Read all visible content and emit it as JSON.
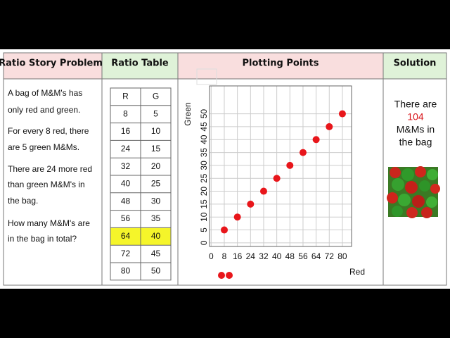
{
  "headers": [
    "Ratio Story Problem",
    "Ratio Table",
    "Plotting Points",
    "Solution"
  ],
  "story": [
    [
      "A bag of M&M's has",
      "only red and green."
    ],
    [
      "For every 8 red, there",
      "are 5 green M&Ms."
    ],
    [
      "There are 24 more red",
      "than green M&M's in",
      "the bag."
    ],
    [
      "How many M&M's are",
      "in the bag in total?"
    ]
  ],
  "table": {
    "columns": [
      "R",
      "G"
    ],
    "rows": [
      [
        8,
        5
      ],
      [
        16,
        10
      ],
      [
        24,
        15
      ],
      [
        32,
        20
      ],
      [
        40,
        25
      ],
      [
        48,
        30
      ],
      [
        56,
        35
      ],
      [
        64,
        40
      ],
      [
        72,
        45
      ],
      [
        80,
        50
      ]
    ],
    "highlight_row": 7,
    "highlight_color": "#f5f52a"
  },
  "plot": {
    "type": "scatter",
    "x_label": "Red",
    "y_label": "Green",
    "x": [
      8,
      16,
      24,
      32,
      40,
      48,
      56,
      64,
      72,
      80
    ],
    "values": [
      5,
      10,
      15,
      20,
      25,
      30,
      35,
      40,
      45,
      50
    ],
    "color": "#e8161b",
    "xlim": [
      -1,
      85.6
    ],
    "ylim": [
      -1.4,
      60.8
    ],
    "xticks": [
      0,
      8,
      16,
      24,
      32,
      40,
      48,
      56,
      64,
      72,
      80
    ],
    "yticks": [
      0,
      5,
      10,
      15,
      20,
      25,
      30,
      35,
      40,
      45,
      50
    ],
    "grid": true
  },
  "solution": [
    "There are",
    "104",
    "M&Ms in",
    "the bag"
  ]
}
